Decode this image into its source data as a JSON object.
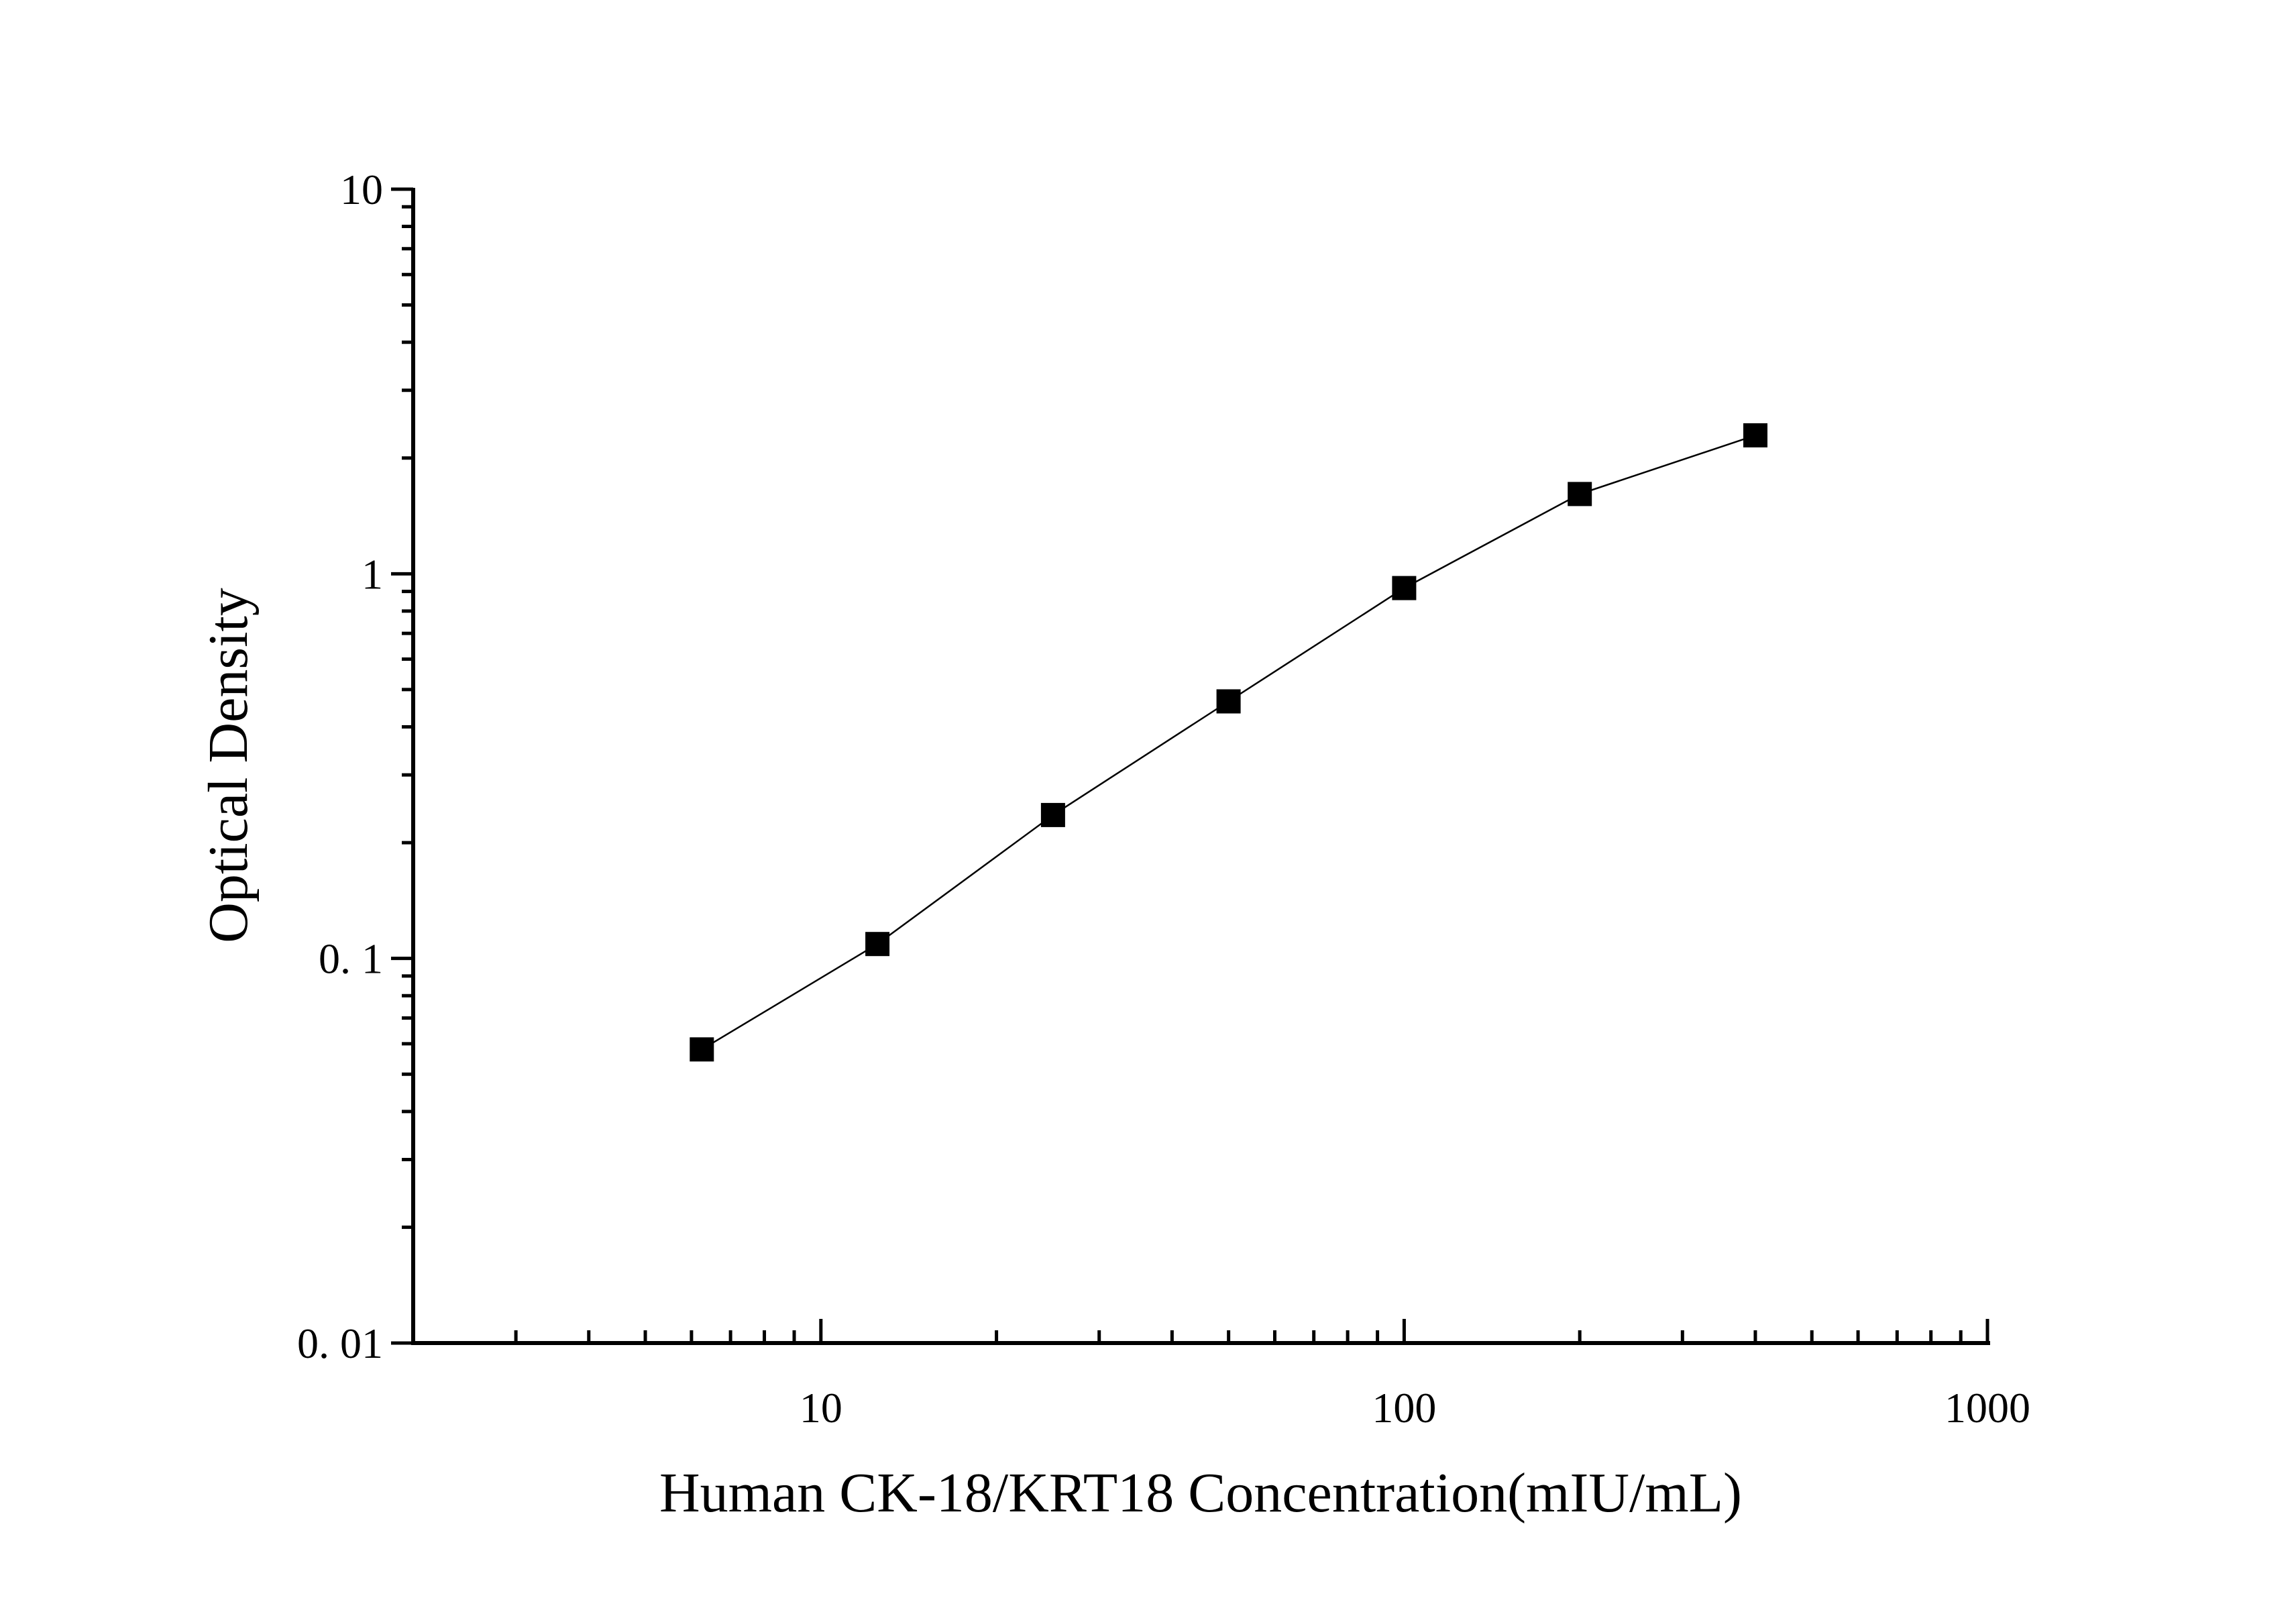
{
  "chart_data": {
    "type": "scatter",
    "x_scale": "log",
    "y_scale": "log",
    "xlabel": "Human CK-18/KRT18 Concentration(mIU/mL)",
    "ylabel": "Optical Density",
    "xlim": [
      2,
      1000
    ],
    "ylim": [
      0.01,
      10
    ],
    "x_ticks": [
      10,
      100,
      1000
    ],
    "x_tick_labels": [
      "10",
      "100",
      "1000"
    ],
    "y_ticks": [
      0.01,
      0.1,
      1,
      10
    ],
    "y_tick_labels": [
      "0. 01",
      "0. 1",
      "1",
      "10"
    ],
    "grid": false,
    "series": [
      {
        "marker": "square",
        "connected": true,
        "x": [
          6.25,
          12.5,
          25,
          50,
          100,
          200,
          400
        ],
        "y": [
          0.058,
          0.109,
          0.236,
          0.466,
          0.918,
          1.612,
          2.291
        ]
      }
    ]
  }
}
